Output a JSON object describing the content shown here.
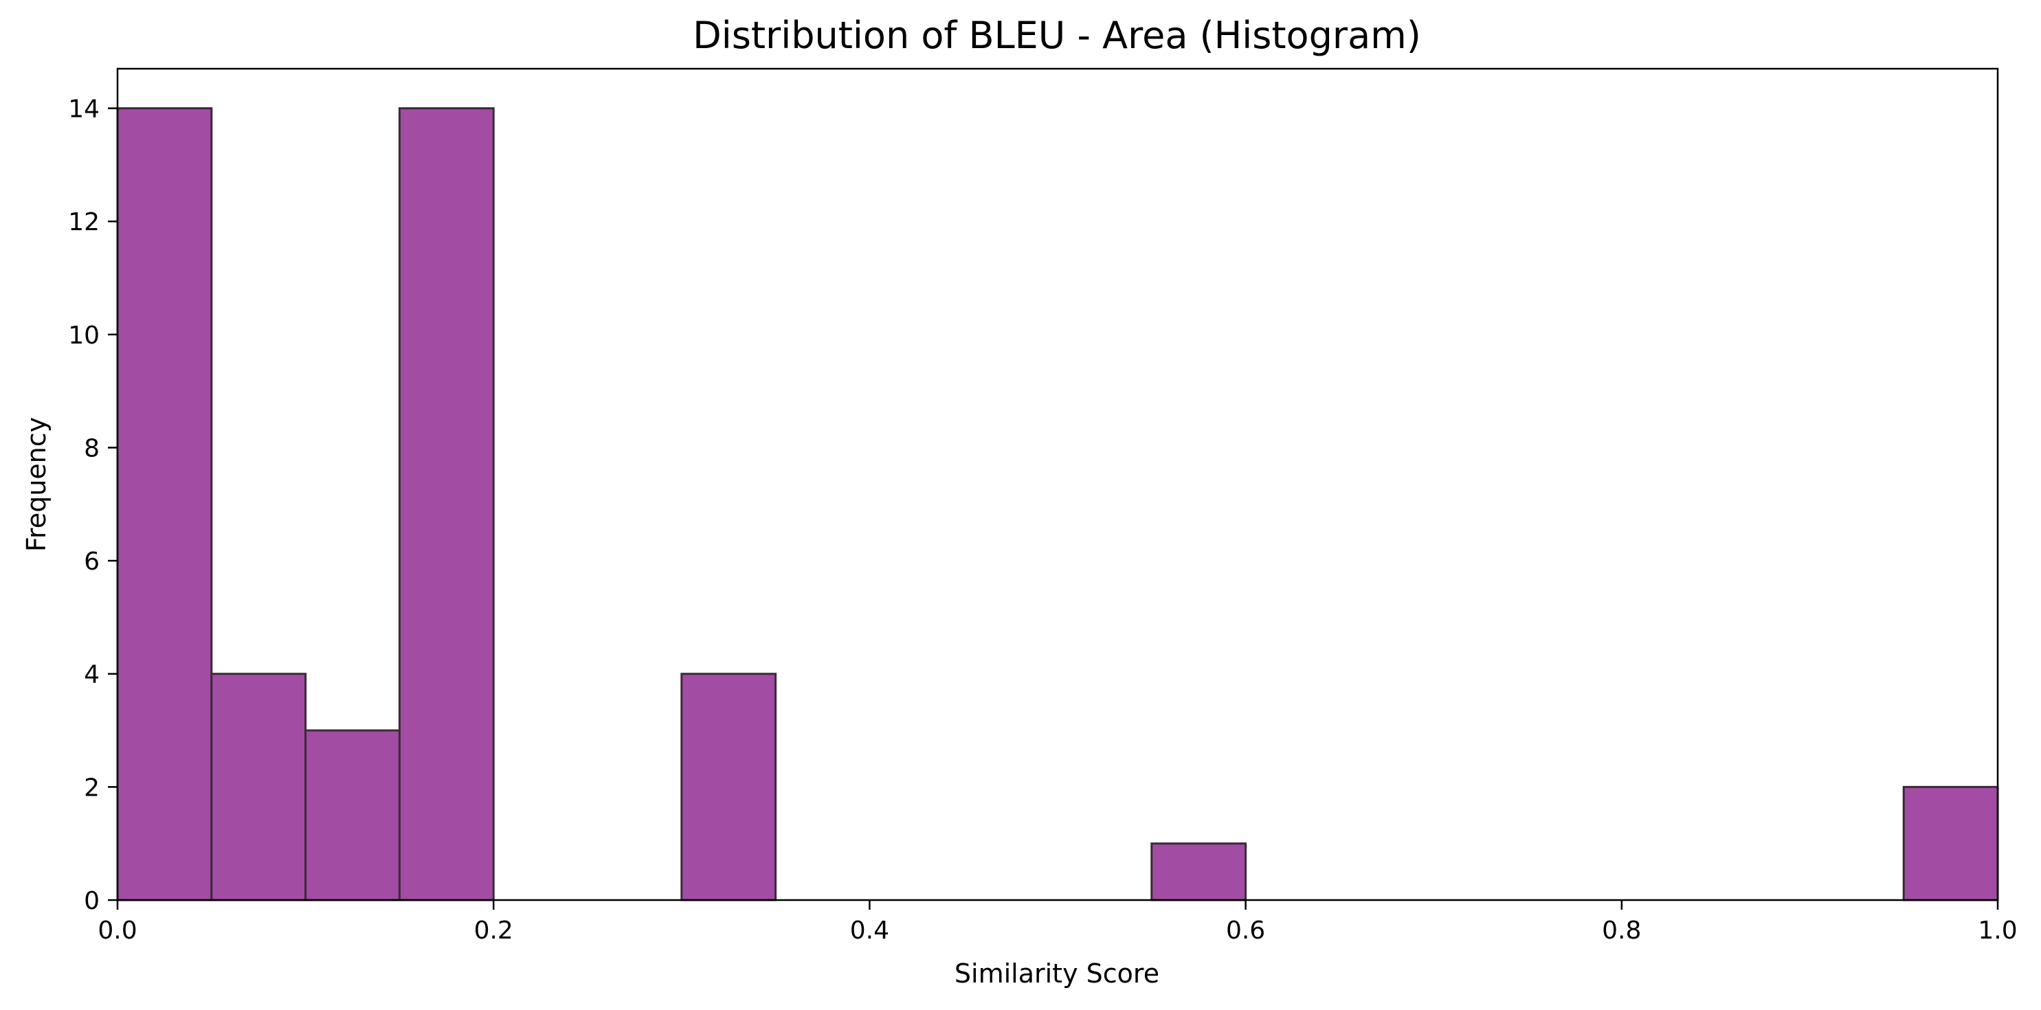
{
  "chart_data": {
    "type": "bar",
    "title": "Distribution of BLEU - Area (Histogram)",
    "xlabel": "Similarity Score",
    "ylabel": "Frequency",
    "bins": [
      {
        "start": 0.0,
        "end": 0.05,
        "count": 14
      },
      {
        "start": 0.05,
        "end": 0.1,
        "count": 4
      },
      {
        "start": 0.1,
        "end": 0.15,
        "count": 3
      },
      {
        "start": 0.15,
        "end": 0.2,
        "count": 14
      },
      {
        "start": 0.2,
        "end": 0.25,
        "count": 0
      },
      {
        "start": 0.25,
        "end": 0.3,
        "count": 0
      },
      {
        "start": 0.3,
        "end": 0.35,
        "count": 4
      },
      {
        "start": 0.35,
        "end": 0.4,
        "count": 0
      },
      {
        "start": 0.4,
        "end": 0.45,
        "count": 0
      },
      {
        "start": 0.45,
        "end": 0.5,
        "count": 0
      },
      {
        "start": 0.5,
        "end": 0.55,
        "count": 0
      },
      {
        "start": 0.55,
        "end": 0.6,
        "count": 1
      },
      {
        "start": 0.6,
        "end": 0.65,
        "count": 0
      },
      {
        "start": 0.65,
        "end": 0.7,
        "count": 0
      },
      {
        "start": 0.7,
        "end": 0.75,
        "count": 0
      },
      {
        "start": 0.75,
        "end": 0.8,
        "count": 0
      },
      {
        "start": 0.8,
        "end": 0.85,
        "count": 0
      },
      {
        "start": 0.85,
        "end": 0.9,
        "count": 0
      },
      {
        "start": 0.9,
        "end": 0.95,
        "count": 0
      },
      {
        "start": 0.95,
        "end": 1.0,
        "count": 2
      }
    ],
    "xlim": [
      0,
      1.0
    ],
    "ylim": [
      0,
      14.7
    ],
    "xticks": [
      {
        "value": 0.0,
        "label": "0.0"
      },
      {
        "value": 0.2,
        "label": "0.2"
      },
      {
        "value": 0.4,
        "label": "0.4"
      },
      {
        "value": 0.6,
        "label": "0.6"
      },
      {
        "value": 0.8,
        "label": "0.8"
      },
      {
        "value": 1.0,
        "label": "1.0"
      }
    ],
    "yticks": [
      {
        "value": 0,
        "label": "0"
      },
      {
        "value": 2,
        "label": "2"
      },
      {
        "value": 4,
        "label": "4"
      },
      {
        "value": 6,
        "label": "6"
      },
      {
        "value": 8,
        "label": "8"
      },
      {
        "value": 10,
        "label": "10"
      },
      {
        "value": 12,
        "label": "12"
      },
      {
        "value": 14,
        "label": "14"
      }
    ],
    "grid": false,
    "bar_color": "#a34ca3",
    "bar_edge_color": "#3a2a3a"
  }
}
